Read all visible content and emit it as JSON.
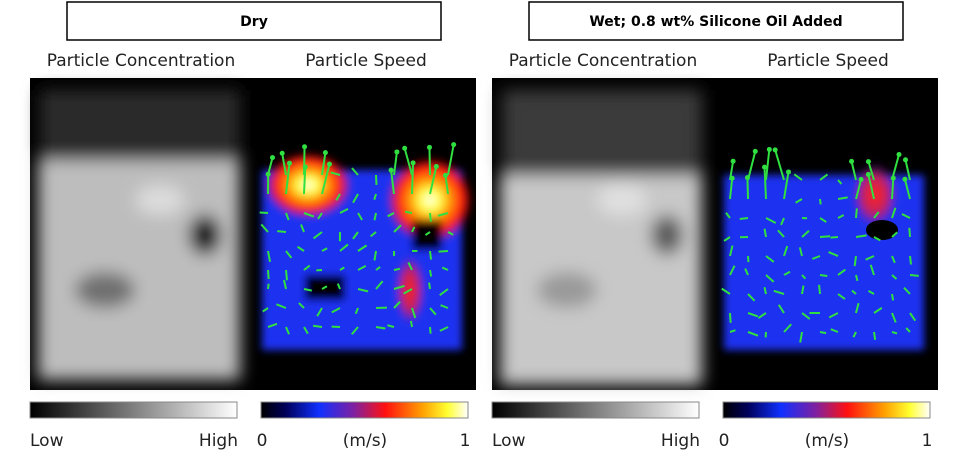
{
  "panels": [
    {
      "title": "Dry",
      "left_label": "Particle Concentration",
      "right_label": "Particle Speed",
      "concentration_scale": {
        "low": "Low",
        "high": "High"
      },
      "speed_scale": {
        "min": "0",
        "unit": "(m/s)",
        "max": "1"
      }
    },
    {
      "title": "Wet; 0.8 wt% Silicone Oil Added",
      "left_label": "Particle Concentration",
      "right_label": "Particle Speed",
      "concentration_scale": {
        "low": "Low",
        "high": "High"
      },
      "speed_scale": {
        "min": "0",
        "unit": "(m/s)",
        "max": "1"
      }
    }
  ]
}
